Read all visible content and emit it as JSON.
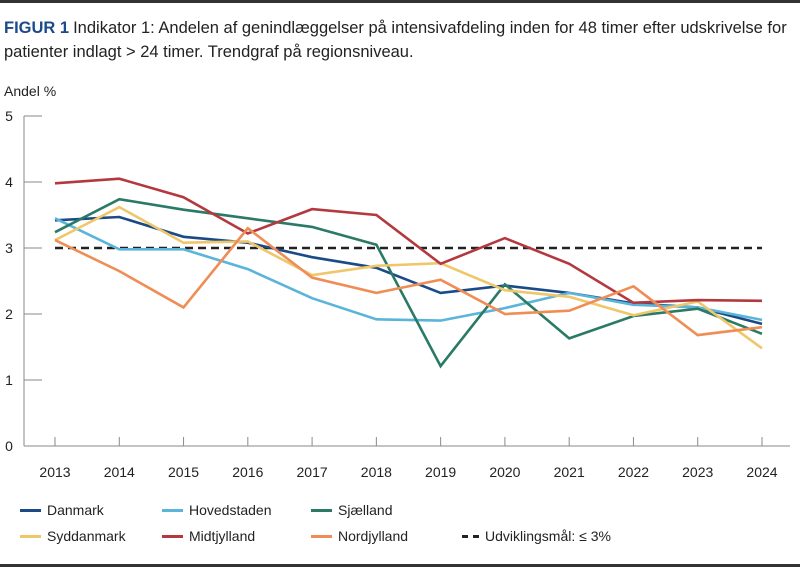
{
  "caption": {
    "figure_label": "FIGUR 1",
    "text": "Indikator 1: Andelen af genindlæggelser på intensivafdeling inden for 48 timer efter udskrivelse for patienter indlagt > 24 timer. Trendgraf på regionsniveau."
  },
  "chart_data": {
    "type": "line",
    "title": "Indikator 1: Andelen af genindlæggelser på intensivafdeling inden for 48 timer efter udskrivelse for patienter indlagt > 24 timer. Trendgraf på regionsniveau.",
    "xlabel": "",
    "ylabel": "Andel %",
    "ylim": [
      0,
      5
    ],
    "yticks": [
      "0",
      "1",
      "2",
      "3",
      "4",
      "5"
    ],
    "grid": false,
    "legend_position": "bottom",
    "categories": [
      "2013",
      "2014",
      "2015",
      "2016",
      "2017",
      "2018",
      "2019",
      "2020",
      "2021",
      "2022",
      "2023",
      "2024"
    ],
    "series": [
      {
        "name": "Danmark",
        "color": "#1a4b87",
        "values": [
          3.42,
          3.47,
          3.17,
          3.08,
          2.86,
          2.7,
          2.32,
          2.43,
          2.32,
          2.16,
          2.1,
          1.85
        ]
      },
      {
        "name": "Hovedstaden",
        "color": "#5bb4d9",
        "values": [
          3.45,
          2.98,
          2.98,
          2.68,
          2.24,
          1.92,
          1.9,
          2.09,
          2.32,
          2.14,
          2.1,
          1.91
        ]
      },
      {
        "name": "Sjælland",
        "color": "#2a7a65",
        "values": [
          3.24,
          3.74,
          3.58,
          3.45,
          3.32,
          3.05,
          1.21,
          2.45,
          1.63,
          1.97,
          2.08,
          1.7
        ]
      },
      {
        "name": "Syddanmark",
        "color": "#efc76a",
        "values": [
          3.12,
          3.62,
          3.08,
          3.1,
          2.59,
          2.73,
          2.77,
          2.36,
          2.26,
          1.98,
          2.19,
          1.48
        ]
      },
      {
        "name": "Midtjylland",
        "color": "#b3393f",
        "values": [
          3.98,
          4.05,
          3.77,
          3.22,
          3.59,
          3.5,
          2.76,
          3.15,
          2.76,
          2.17,
          2.21,
          2.2
        ]
      },
      {
        "name": "Nordjylland",
        "color": "#ef8d55",
        "values": [
          3.12,
          2.65,
          2.1,
          3.3,
          2.55,
          2.32,
          2.52,
          2.0,
          2.05,
          2.42,
          1.68,
          1.8
        ]
      }
    ],
    "reference_line": {
      "name": "Udviklingsmål: ≤ 3%",
      "value": 3,
      "color": "#222222",
      "style": "dashed"
    }
  },
  "legend": [
    {
      "label": "Danmark",
      "color": "#1a4b87"
    },
    {
      "label": "Hovedstaden",
      "color": "#5bb4d9"
    },
    {
      "label": "Sjælland",
      "color": "#2a7a65"
    },
    {
      "label": "Syddanmark",
      "color": "#efc76a"
    },
    {
      "label": "Midtjylland",
      "color": "#b3393f"
    },
    {
      "label": "Nordjylland",
      "color": "#ef8d55"
    },
    {
      "label": "Udviklingsmål: ≤ 3%",
      "color": "#222222",
      "dashed": true
    }
  ]
}
